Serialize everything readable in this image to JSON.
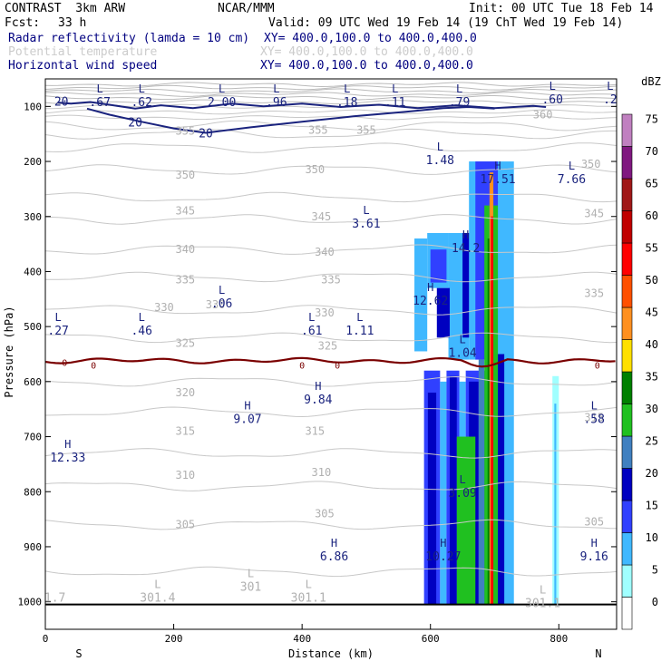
{
  "header": {
    "model": "CONTRAST  3km ARW",
    "center": "NCAR/MMM",
    "init": "Init: 00 UTC Tue 18 Feb 14",
    "fcst_label": "Fcst:",
    "fcst_value": "33 h",
    "valid": "Valid: 09 UTC Wed 19 Feb 14 (19 ChT Wed 19 Feb 14)",
    "field1": "Radar reflectivity (lamda = 10 cm)",
    "field1_xy": "XY= 400.0,100.0 to 400.0,400.0",
    "field2": "Potential temperature",
    "field2_xy": "XY= 400.0,100.0 to 400.0,400.0",
    "field3": "Horizontal wind speed",
    "field3_xy": "XY= 400.0,100.0 to 400.0,400.0"
  },
  "chart_data": {
    "type": "heatmap",
    "title": "Radar reflectivity cross section",
    "xlabel": "Distance (km)",
    "ylabel": "Pressure (hPa)",
    "xlim": [
      0,
      890
    ],
    "ylim": [
      1050,
      50
    ],
    "x_ticks": [
      "0",
      "200",
      "400",
      "600",
      "800"
    ],
    "y_ticks": [
      "100",
      "200",
      "300",
      "400",
      "500",
      "600",
      "700",
      "800",
      "900",
      "1000"
    ],
    "endpoint_left": "S",
    "endpoint_right": "N",
    "colorbar": {
      "unit": "dBZ",
      "levels": [
        "0",
        "5",
        "10",
        "15",
        "20",
        "25",
        "30",
        "35",
        "40",
        "45",
        "50",
        "55",
        "60",
        "65",
        "70",
        "75"
      ],
      "colors": [
        "#ffffff",
        "#a0ffff",
        "#40b8ff",
        "#3040ff",
        "#0000c0",
        "#4080c0",
        "#20c020",
        "#008000",
        "#ffe000",
        "#ff9020",
        "#ff5000",
        "#ff0000",
        "#c00000",
        "#a01818",
        "#801880",
        "#c080c0"
      ]
    },
    "theta_labels": [
      {
        "value": "360",
        "x": 775,
        "p": 115
      },
      {
        "value": "355",
        "x": 218,
        "p": 145
      },
      {
        "value": "355",
        "x": 425,
        "p": 143
      },
      {
        "value": "355",
        "x": 500,
        "p": 143
      },
      {
        "value": "350",
        "x": 218,
        "p": 225
      },
      {
        "value": "350",
        "x": 420,
        "p": 215
      },
      {
        "value": "350",
        "x": 850,
        "p": 205
      },
      {
        "value": "345",
        "x": 218,
        "p": 290
      },
      {
        "value": "345",
        "x": 430,
        "p": 300
      },
      {
        "value": "345",
        "x": 855,
        "p": 295
      },
      {
        "value": "340",
        "x": 218,
        "p": 360
      },
      {
        "value": "340",
        "x": 435,
        "p": 365
      },
      {
        "value": "335",
        "x": 218,
        "p": 415
      },
      {
        "value": "335",
        "x": 445,
        "p": 415
      },
      {
        "value": "335",
        "x": 855,
        "p": 440
      },
      {
        "value": "330",
        "x": 185,
        "p": 465
      },
      {
        "value": "330",
        "x": 265,
        "p": 460
      },
      {
        "value": "330",
        "x": 435,
        "p": 475
      },
      {
        "value": "325",
        "x": 218,
        "p": 530
      },
      {
        "value": "325",
        "x": 440,
        "p": 535
      },
      {
        "value": "320",
        "x": 218,
        "p": 620
      },
      {
        "value": "315",
        "x": 218,
        "p": 690
      },
      {
        "value": "315",
        "x": 420,
        "p": 690
      },
      {
        "value": "315",
        "x": 855,
        "p": 665
      },
      {
        "value": "310",
        "x": 218,
        "p": 770
      },
      {
        "value": "310",
        "x": 430,
        "p": 765
      },
      {
        "value": "305",
        "x": 218,
        "p": 860
      },
      {
        "value": "305",
        "x": 435,
        "p": 840
      },
      {
        "value": "305",
        "x": 855,
        "p": 855
      }
    ],
    "wind_labels": [
      {
        "value": "20",
        "x": 25,
        "p": 92
      },
      {
        "value": "20",
        "x": 140,
        "p": 130
      },
      {
        "value": "20",
        "x": 250,
        "p": 150
      },
      {
        "value": "0",
        "x": 30,
        "p": 565
      },
      {
        "value": "0",
        "x": 75,
        "p": 570
      },
      {
        "value": "0",
        "x": 400,
        "p": 570
      },
      {
        "value": "0",
        "x": 455,
        "p": 570
      },
      {
        "value": "0",
        "x": 860,
        "p": 570
      }
    ],
    "extrema": [
      {
        "type": "L",
        "value": ".67",
        "x": 85,
        "p": 85
      },
      {
        "type": "L",
        "value": ".62",
        "x": 150,
        "p": 85
      },
      {
        "type": "L",
        "value": "2.00",
        "x": 275,
        "p": 85
      },
      {
        "type": "L",
        "value": ".96",
        "x": 360,
        "p": 85
      },
      {
        "type": "L",
        "value": ".18",
        "x": 470,
        "p": 85
      },
      {
        "type": "L",
        "value": ".11",
        "x": 545,
        "p": 85
      },
      {
        "type": "L",
        "value": ".79",
        "x": 645,
        "p": 85
      },
      {
        "type": "L",
        "value": ".60",
        "x": 790,
        "p": 80
      },
      {
        "type": "L",
        "value": ".2",
        "x": 880,
        "p": 80
      },
      {
        "type": "L",
        "value": "1.48",
        "x": 615,
        "p": 190
      },
      {
        "type": "H",
        "value": "17.51",
        "x": 705,
        "p": 225
      },
      {
        "type": "L",
        "value": "7.66",
        "x": 820,
        "p": 225
      },
      {
        "type": "L",
        "value": "3.61",
        "x": 500,
        "p": 305
      },
      {
        "type": "H",
        "value": "14.2",
        "x": 655,
        "p": 350
      },
      {
        "type": "H",
        "value": "12.62",
        "x": 600,
        "p": 445
      },
      {
        "type": "L",
        "value": ".06",
        "x": 275,
        "p": 450
      },
      {
        "type": "L",
        "value": ".27",
        "x": 20,
        "p": 500
      },
      {
        "type": "L",
        "value": ".46",
        "x": 150,
        "p": 500
      },
      {
        "type": "L",
        "value": ".61",
        "x": 415,
        "p": 500
      },
      {
        "type": "L",
        "value": "1.11",
        "x": 490,
        "p": 500
      },
      {
        "type": "L",
        "value": "1.04",
        "x": 650,
        "p": 540
      },
      {
        "type": "H",
        "value": "9.84",
        "x": 425,
        "p": 625
      },
      {
        "type": "H",
        "value": "9.07",
        "x": 315,
        "p": 660
      },
      {
        "type": "L",
        "value": ".58",
        "x": 855,
        "p": 660
      },
      {
        "type": "H",
        "value": "12.33",
        "x": 35,
        "p": 730
      },
      {
        "type": "L",
        "value": "3.09",
        "x": 650,
        "p": 795
      },
      {
        "type": "H",
        "value": "6.86",
        "x": 450,
        "p": 910
      },
      {
        "type": "H",
        "value": "10.27",
        "x": 620,
        "p": 910
      },
      {
        "type": "H",
        "value": "9.16",
        "x": 855,
        "p": 910
      },
      {
        "type": "",
        "value": "1.7",
        "x": 15,
        "p": 985
      },
      {
        "type": "L",
        "value": "301.4",
        "x": 175,
        "p": 985
      },
      {
        "type": "L",
        "value": "301",
        "x": 320,
        "p": 965
      },
      {
        "type": "L",
        "value": "301.1",
        "x": 410,
        "p": 985
      },
      {
        "type": "L",
        "value": "301.1",
        "x": 775,
        "p": 995
      }
    ],
    "reflectivity_cells": [
      {
        "x0": 575,
        "x1": 595,
        "p0": 340,
        "p1": 545,
        "level": 10
      },
      {
        "x0": 595,
        "x1": 628,
        "p0": 330,
        "p1": 430,
        "level": 10
      },
      {
        "x0": 628,
        "x1": 660,
        "p0": 330,
        "p1": 560,
        "level": 10
      },
      {
        "x0": 600,
        "x1": 625,
        "p0": 360,
        "p1": 420,
        "level": 15
      },
      {
        "x0": 610,
        "x1": 630,
        "p0": 430,
        "p1": 520,
        "level": 20
      },
      {
        "x0": 650,
        "x1": 665,
        "p0": 330,
        "p1": 520,
        "level": 20
      },
      {
        "x0": 660,
        "x1": 730,
        "p0": 200,
        "p1": 560,
        "level": 10
      },
      {
        "x0": 670,
        "x1": 705,
        "p0": 200,
        "p1": 560,
        "level": 15
      },
      {
        "x0": 590,
        "x1": 615,
        "p0": 580,
        "p1": 1005,
        "level": 15
      },
      {
        "x0": 615,
        "x1": 625,
        "p0": 600,
        "p1": 1005,
        "level": 10
      },
      {
        "x0": 625,
        "x1": 645,
        "p0": 580,
        "p1": 1005,
        "level": 15
      },
      {
        "x0": 645,
        "x1": 655,
        "p0": 600,
        "p1": 1005,
        "level": 10
      },
      {
        "x0": 655,
        "x1": 695,
        "p0": 580,
        "p1": 1005,
        "level": 15
      },
      {
        "x0": 695,
        "x1": 730,
        "p0": 560,
        "p1": 1005,
        "level": 10
      },
      {
        "x0": 596,
        "x1": 609,
        "p0": 620,
        "p1": 1005,
        "level": 20
      },
      {
        "x0": 630,
        "x1": 641,
        "p0": 590,
        "p1": 1005,
        "level": 20
      },
      {
        "x0": 660,
        "x1": 675,
        "p0": 600,
        "p1": 1005,
        "level": 20
      },
      {
        "x0": 641,
        "x1": 670,
        "p0": 700,
        "p1": 1005,
        "level": 30
      },
      {
        "x0": 675,
        "x1": 684,
        "p0": 560,
        "p1": 1005,
        "level": 25
      },
      {
        "x0": 684,
        "x1": 692,
        "p0": 280,
        "p1": 1005,
        "level": 30
      },
      {
        "x0": 689,
        "x1": 693,
        "p0": 340,
        "p1": 1005,
        "level": 35
      },
      {
        "x0": 692,
        "x1": 698,
        "p0": 220,
        "p1": 1005,
        "level": 45
      },
      {
        "x0": 694,
        "x1": 700,
        "p0": 300,
        "p1": 1005,
        "level": 55
      },
      {
        "x0": 698,
        "x1": 705,
        "p0": 280,
        "p1": 1005,
        "level": 30
      },
      {
        "x0": 705,
        "x1": 715,
        "p0": 550,
        "p1": 1005,
        "level": 20
      },
      {
        "x0": 790,
        "x1": 800,
        "p0": 590,
        "p1": 1005,
        "level": 5
      },
      {
        "x0": 793,
        "x1": 796,
        "p0": 640,
        "p1": 1005,
        "level": 10
      }
    ]
  }
}
